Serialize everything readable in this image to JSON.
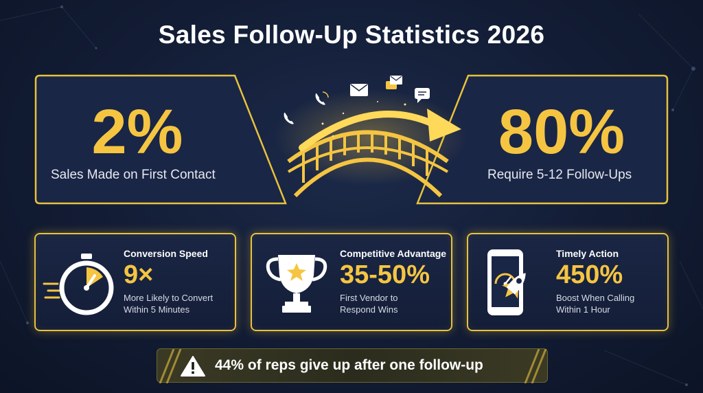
{
  "title": "Sales Follow-Up Statistics 2026",
  "hero": {
    "left": {
      "value": "2%",
      "label": "Sales Made on First Contact"
    },
    "right": {
      "value": "80%",
      "label": "Require 5-12 Follow-Ups"
    }
  },
  "cards": [
    {
      "title": "Conversion Speed",
      "value": "9×",
      "desc_line1": "More Likely to Convert",
      "desc_line2": "Within 5 Minutes",
      "icon": "stopwatch-icon"
    },
    {
      "title": "Competitive Advantage",
      "value": "35-50%",
      "desc_line1": "First Vendor to",
      "desc_line2": "Respond Wins",
      "icon": "trophy-icon"
    },
    {
      "title": "Timely Action",
      "value": "450%",
      "desc_line1": "Boost When Calling",
      "desc_line2": "Within 1 Hour",
      "icon": "phone-rocket-icon"
    }
  ],
  "banner": {
    "text": "44% of reps give up after one follow-up",
    "icon": "warning-icon"
  },
  "colors": {
    "accent": "#f5c542",
    "background": "#121c34",
    "text": "#ffffff"
  }
}
